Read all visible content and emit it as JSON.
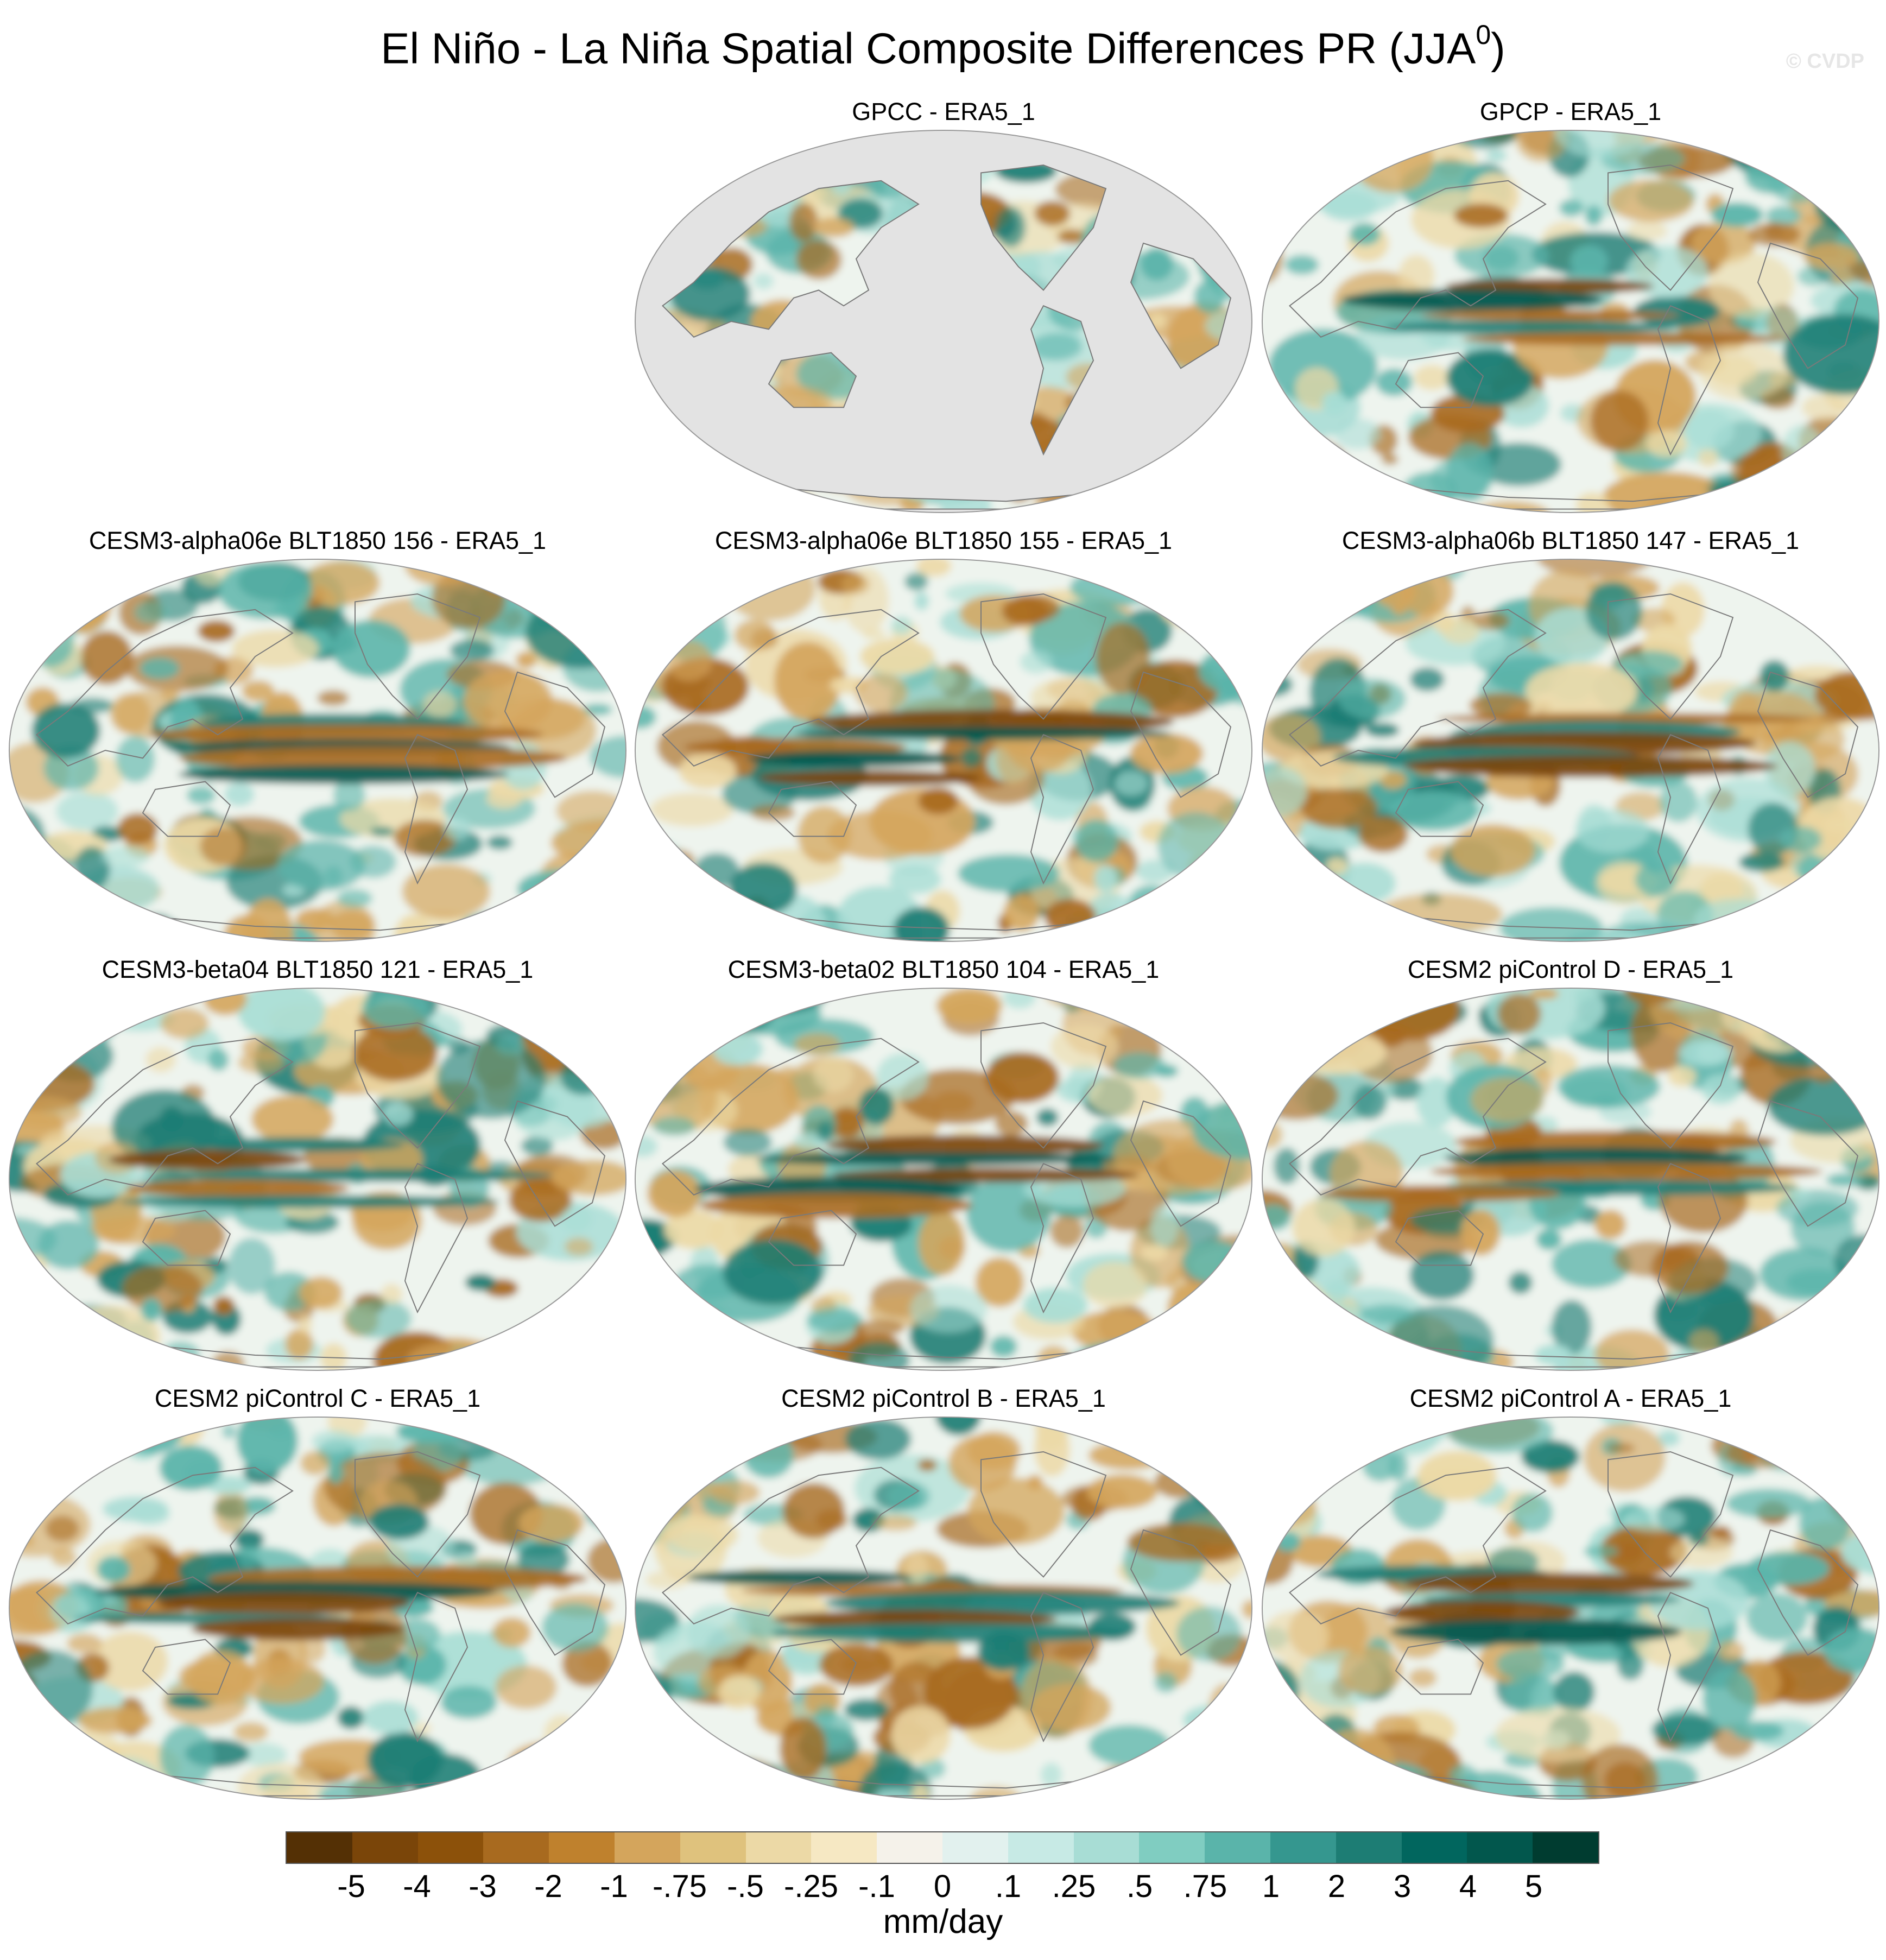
{
  "figure": {
    "title_prefix": "El Niño - La Niña Spatial Composite Differences PR (JJA",
    "title_superscript": "0",
    "title_suffix": ")",
    "watermark": "© CVDP"
  },
  "panels": [
    {
      "title": "GPCC - ERA5_1",
      "kind": "land_only",
      "seed": 11
    },
    {
      "title": "GPCP - ERA5_1",
      "kind": "full",
      "seed": 23
    },
    {
      "title": "CESM3-alpha06e BLT1850 156 - ERA5_1",
      "kind": "full",
      "seed": 37
    },
    {
      "title": "CESM3-alpha06e BLT1850 155 - ERA5_1",
      "kind": "full",
      "seed": 41
    },
    {
      "title": "CESM3-alpha06b BLT1850 147 - ERA5_1",
      "kind": "full",
      "seed": 53
    },
    {
      "title": "CESM3-beta04 BLT1850 121 - ERA5_1",
      "kind": "full",
      "seed": 67
    },
    {
      "title": "CESM3-beta02 BLT1850 104 - ERA5_1",
      "kind": "full",
      "seed": 71
    },
    {
      "title": "CESM2 piControl D - ERA5_1",
      "kind": "full",
      "seed": 83
    },
    {
      "title": "CESM2 piControl C - ERA5_1",
      "kind": "full",
      "seed": 97
    },
    {
      "title": "CESM2 piControl B - ERA5_1",
      "kind": "full",
      "seed": 101
    },
    {
      "title": "CESM2 piControl A - ERA5_1",
      "kind": "full",
      "seed": 113
    }
  ],
  "colorbar": {
    "labels": [
      "-5",
      "-4",
      "-3",
      "-2",
      "-1",
      "-.75",
      "-.5",
      "-.25",
      "-.1",
      "0",
      ".1",
      ".25",
      ".5",
      ".75",
      "1",
      "2",
      "3",
      "4",
      "5"
    ],
    "colors": [
      "#543005",
      "#7a4509",
      "#8c510a",
      "#a86a1f",
      "#bf812d",
      "#d4a55c",
      "#dfc27d",
      "#ecd9a6",
      "#f6e8c3",
      "#f5f2ea",
      "#e2f1ee",
      "#c7eae5",
      "#a8ddd5",
      "#80cdc1",
      "#5ab4aa",
      "#35978f",
      "#1d7d74",
      "#01665e",
      "#02574d",
      "#003c30"
    ],
    "units": "mm/day"
  }
}
